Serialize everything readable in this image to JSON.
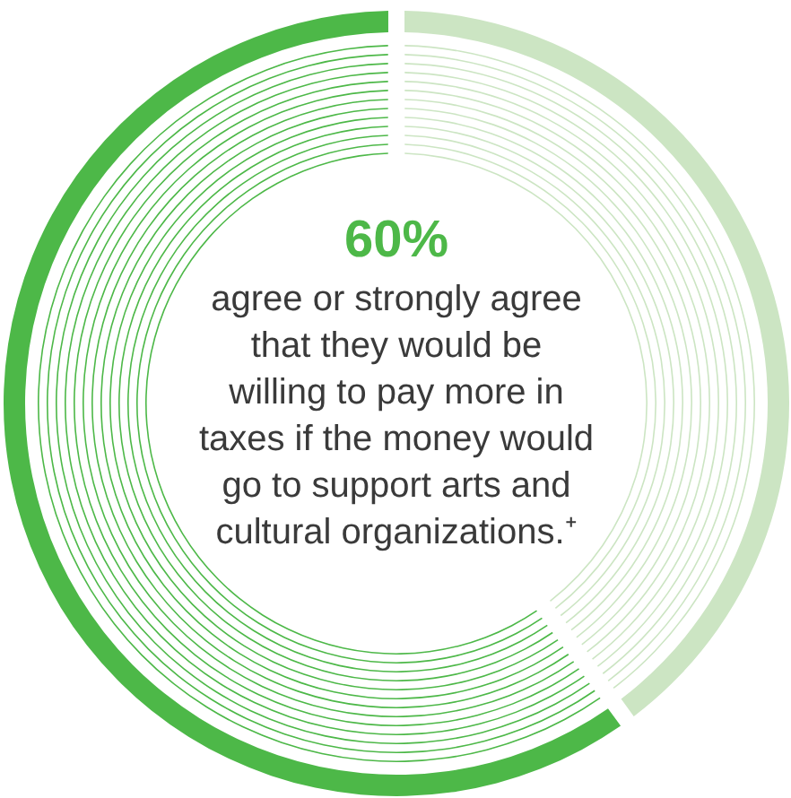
{
  "chart_data": {
    "type": "donut",
    "categories": [
      null,
      null
    ],
    "values": [
      40,
      60
    ],
    "colors": [
      "#cce5c3",
      "#4db848"
    ],
    "value_labels": [
      null,
      "60%"
    ],
    "annotations": [
      "agree or strongly agree that they would be willing to pay more in taxes if the money would go to support arts and cultural organizations.⁺"
    ]
  }
}
